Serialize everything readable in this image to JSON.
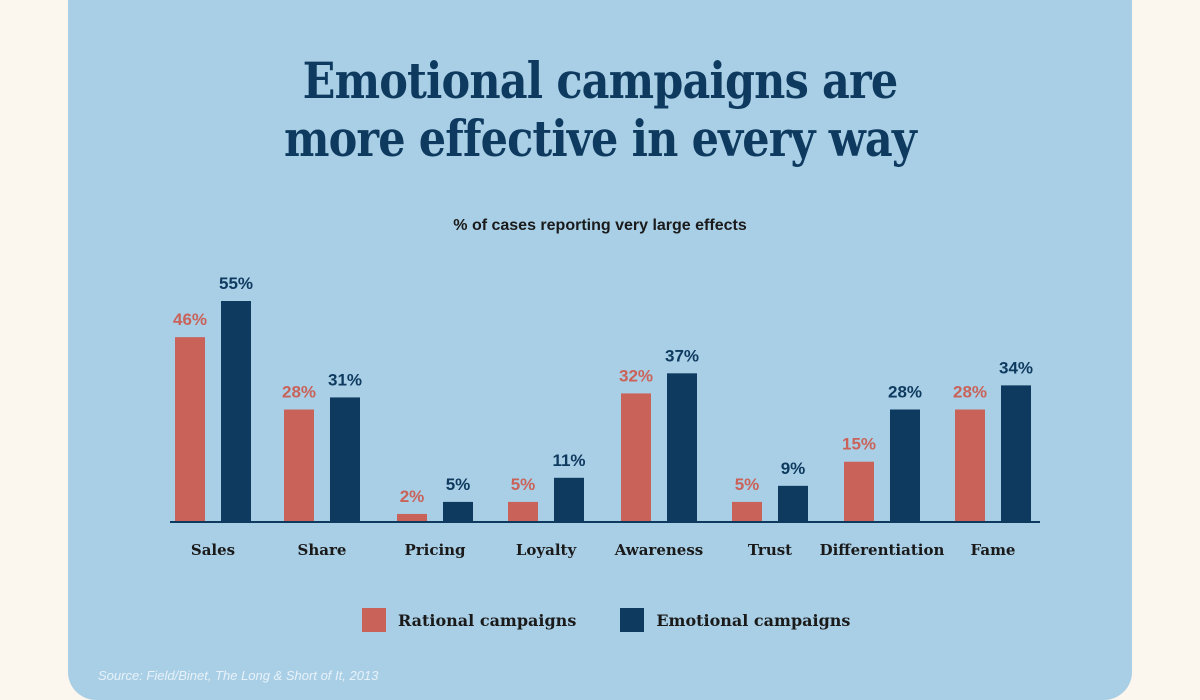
{
  "title_line1": "Emotional campaigns are",
  "title_line2": "more effective in every way",
  "subtitle": "% of cases reporting very large effects",
  "source": "Source: Field/Binet, The Long & Short of It, 2013",
  "colors": {
    "rational": "#c9635a",
    "emotional": "#0e3a5f",
    "background": "#a9cfe6",
    "title": "#0e3a5f"
  },
  "chart_data": {
    "type": "bar",
    "title": "Emotional campaigns are more effective in every way",
    "subtitle": "% of cases reporting very large effects",
    "categories": [
      "Sales",
      "Share",
      "Pricing",
      "Loyalty",
      "Awareness",
      "Trust",
      "Differentiation",
      "Fame"
    ],
    "series": [
      {
        "name": "Rational campaigns",
        "values": [
          46,
          28,
          2,
          5,
          32,
          5,
          15,
          28
        ],
        "labels": [
          "46%",
          "28%",
          "2%",
          "5%",
          "32%",
          "5%",
          "15%",
          "28%"
        ]
      },
      {
        "name": "Emotional campaigns",
        "values": [
          55,
          31,
          5,
          11,
          37,
          9,
          28,
          34
        ],
        "labels": [
          "55%",
          "31%",
          "5%",
          "11%",
          "37%",
          "9%",
          "28%",
          "34%"
        ]
      }
    ],
    "xlabel": "",
    "ylabel": "",
    "ylim": [
      0,
      55
    ],
    "grid": false,
    "legend": "bottom-center"
  }
}
